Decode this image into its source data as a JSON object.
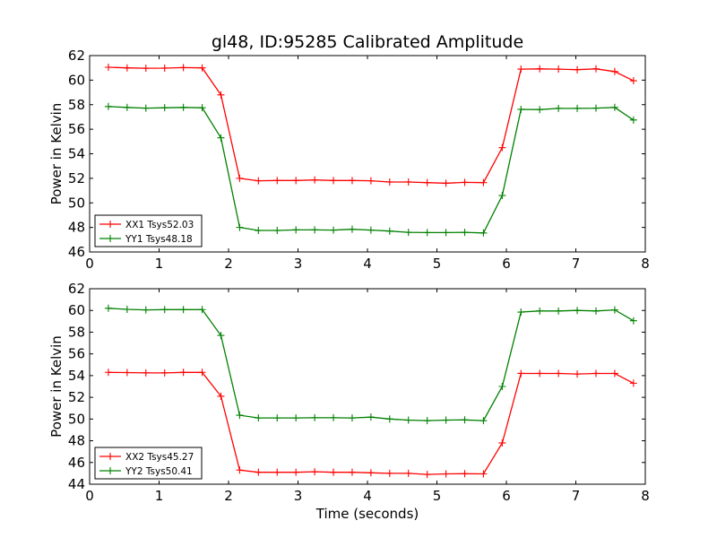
{
  "figure": {
    "title": "gl48, ID:95285 Calibrated Amplitude"
  },
  "chart_data": [
    {
      "type": "line",
      "title": "gl48, ID:95285 Calibrated Amplitude",
      "xlabel": "",
      "ylabel": "Power in Kelvin",
      "xlim": [
        0,
        8
      ],
      "ylim": [
        46,
        62
      ],
      "xticks": [
        "0",
        "1",
        "2",
        "3",
        "4",
        "5",
        "6",
        "7",
        "8"
      ],
      "yticks": [
        "46",
        "48",
        "50",
        "52",
        "54",
        "56",
        "58",
        "60",
        "62"
      ],
      "grid": false,
      "legend_position": "lower-left",
      "x": [
        0.27,
        0.54,
        0.81,
        1.08,
        1.35,
        1.62,
        1.89,
        2.16,
        2.43,
        2.7,
        2.97,
        3.24,
        3.51,
        3.78,
        4.05,
        4.32,
        4.59,
        4.86,
        5.13,
        5.4,
        5.67,
        5.94,
        6.21,
        6.48,
        6.75,
        7.02,
        7.29,
        7.56,
        7.83
      ],
      "series": [
        {
          "name": "XX1 Tsys52.03",
          "color": "#ff0000",
          "values": [
            61.05,
            61.0,
            60.97,
            60.98,
            61.02,
            61.0,
            58.8,
            52.0,
            51.8,
            51.82,
            51.82,
            51.87,
            51.82,
            51.82,
            51.8,
            51.7,
            51.7,
            51.65,
            51.6,
            51.67,
            51.65,
            54.5,
            60.9,
            60.92,
            60.9,
            60.85,
            60.92,
            60.7,
            59.95
          ]
        },
        {
          "name": "YY1 Tsys48.18",
          "color": "#008000",
          "values": [
            57.85,
            57.78,
            57.72,
            57.75,
            57.78,
            57.75,
            55.3,
            48.0,
            47.75,
            47.75,
            47.8,
            47.8,
            47.78,
            47.85,
            47.78,
            47.7,
            47.6,
            47.58,
            47.58,
            47.6,
            47.55,
            50.6,
            57.62,
            57.6,
            57.7,
            57.7,
            57.72,
            57.78,
            56.75
          ]
        }
      ]
    },
    {
      "type": "line",
      "title": "",
      "xlabel": "Time (seconds)",
      "ylabel": "Power in Kelvin",
      "xlim": [
        0,
        8
      ],
      "ylim": [
        44,
        62
      ],
      "xticks": [
        "0",
        "1",
        "2",
        "3",
        "4",
        "5",
        "6",
        "7",
        "8"
      ],
      "yticks": [
        "44",
        "46",
        "48",
        "50",
        "52",
        "54",
        "56",
        "58",
        "60",
        "62"
      ],
      "grid": false,
      "legend_position": "lower-left",
      "x": [
        0.27,
        0.54,
        0.81,
        1.08,
        1.35,
        1.62,
        1.89,
        2.16,
        2.43,
        2.7,
        2.97,
        3.24,
        3.51,
        3.78,
        4.05,
        4.32,
        4.59,
        4.86,
        5.13,
        5.4,
        5.67,
        5.94,
        6.21,
        6.48,
        6.75,
        7.02,
        7.29,
        7.56,
        7.83
      ],
      "series": [
        {
          "name": "XX2 Tsys45.27",
          "color": "#ff0000",
          "values": [
            54.3,
            54.28,
            54.25,
            54.25,
            54.3,
            54.3,
            52.1,
            45.3,
            45.1,
            45.1,
            45.1,
            45.15,
            45.1,
            45.1,
            45.05,
            45.0,
            45.0,
            44.9,
            44.95,
            44.97,
            44.95,
            47.8,
            54.2,
            54.2,
            54.2,
            54.15,
            54.2,
            54.2,
            53.3
          ]
        },
        {
          "name": "YY2 Tsys50.41",
          "color": "#008000",
          "values": [
            60.2,
            60.1,
            60.05,
            60.08,
            60.08,
            60.08,
            57.7,
            50.35,
            50.1,
            50.1,
            50.1,
            50.12,
            50.12,
            50.1,
            50.18,
            50.0,
            49.9,
            49.85,
            49.9,
            49.92,
            49.85,
            53.0,
            59.85,
            59.95,
            59.95,
            60.0,
            59.95,
            60.05,
            59.05
          ]
        }
      ]
    }
  ]
}
